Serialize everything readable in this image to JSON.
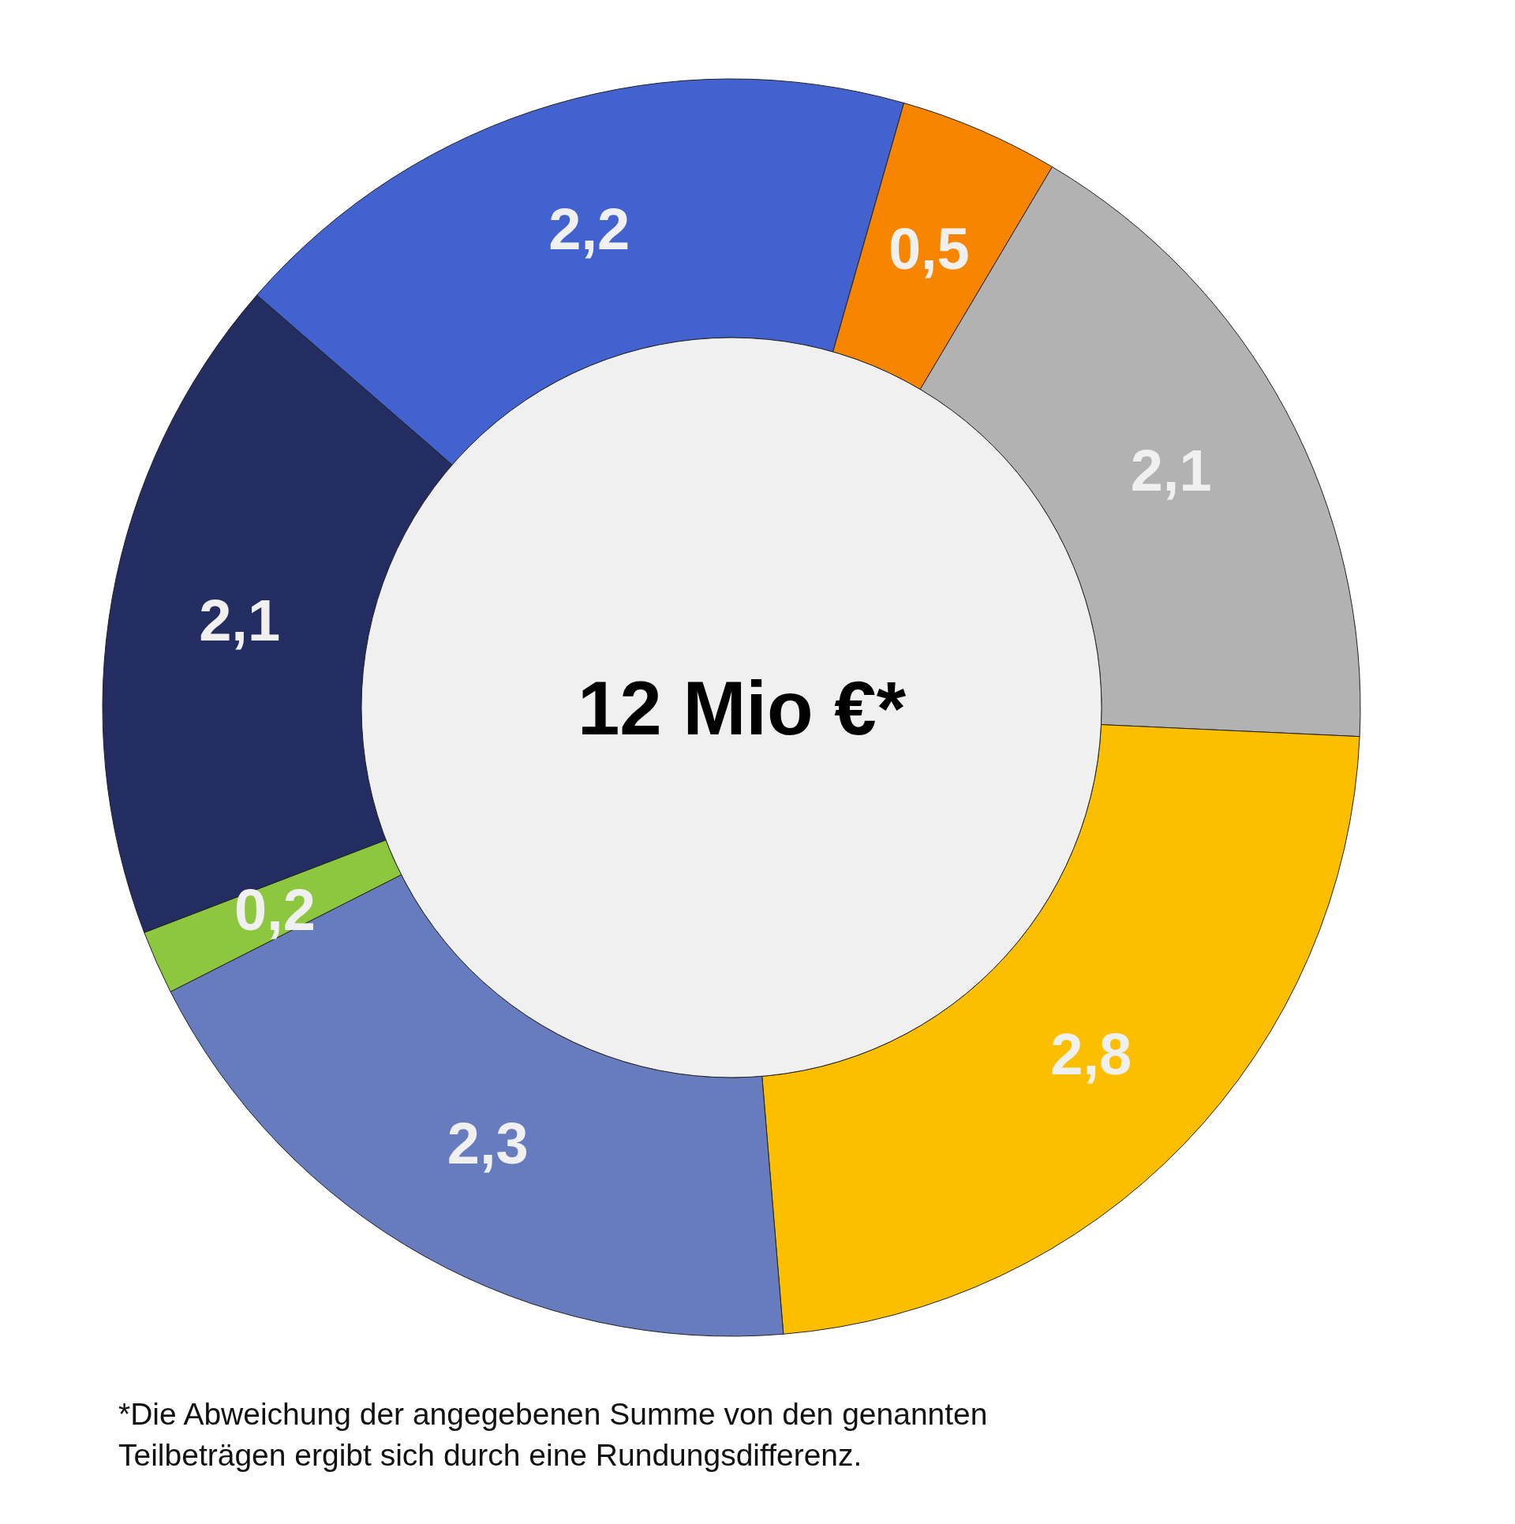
{
  "chart_data": {
    "type": "donut",
    "categories": [
      null,
      null,
      null,
      null,
      null,
      null,
      null
    ],
    "values": [
      2.2,
      0.5,
      2.1,
      2.8,
      2.3,
      0.2,
      2.1
    ],
    "colors": [
      "#4262cf",
      "#f78500",
      "#b2b2b2",
      "#fcbf00",
      "#677bbf",
      "#8dc63f",
      "#232d61"
    ],
    "value_labels": [
      "2,2",
      "0,5",
      "2,1",
      "2,8",
      "2,3",
      "0,2",
      "2,1"
    ],
    "annotations": [
      "12 Mio €*",
      "*Die Abweichung der angegebenen Summe von den genannten Teilbeträgen ergibt sich durch eine Rundungsdifferenz."
    ]
  }
}
